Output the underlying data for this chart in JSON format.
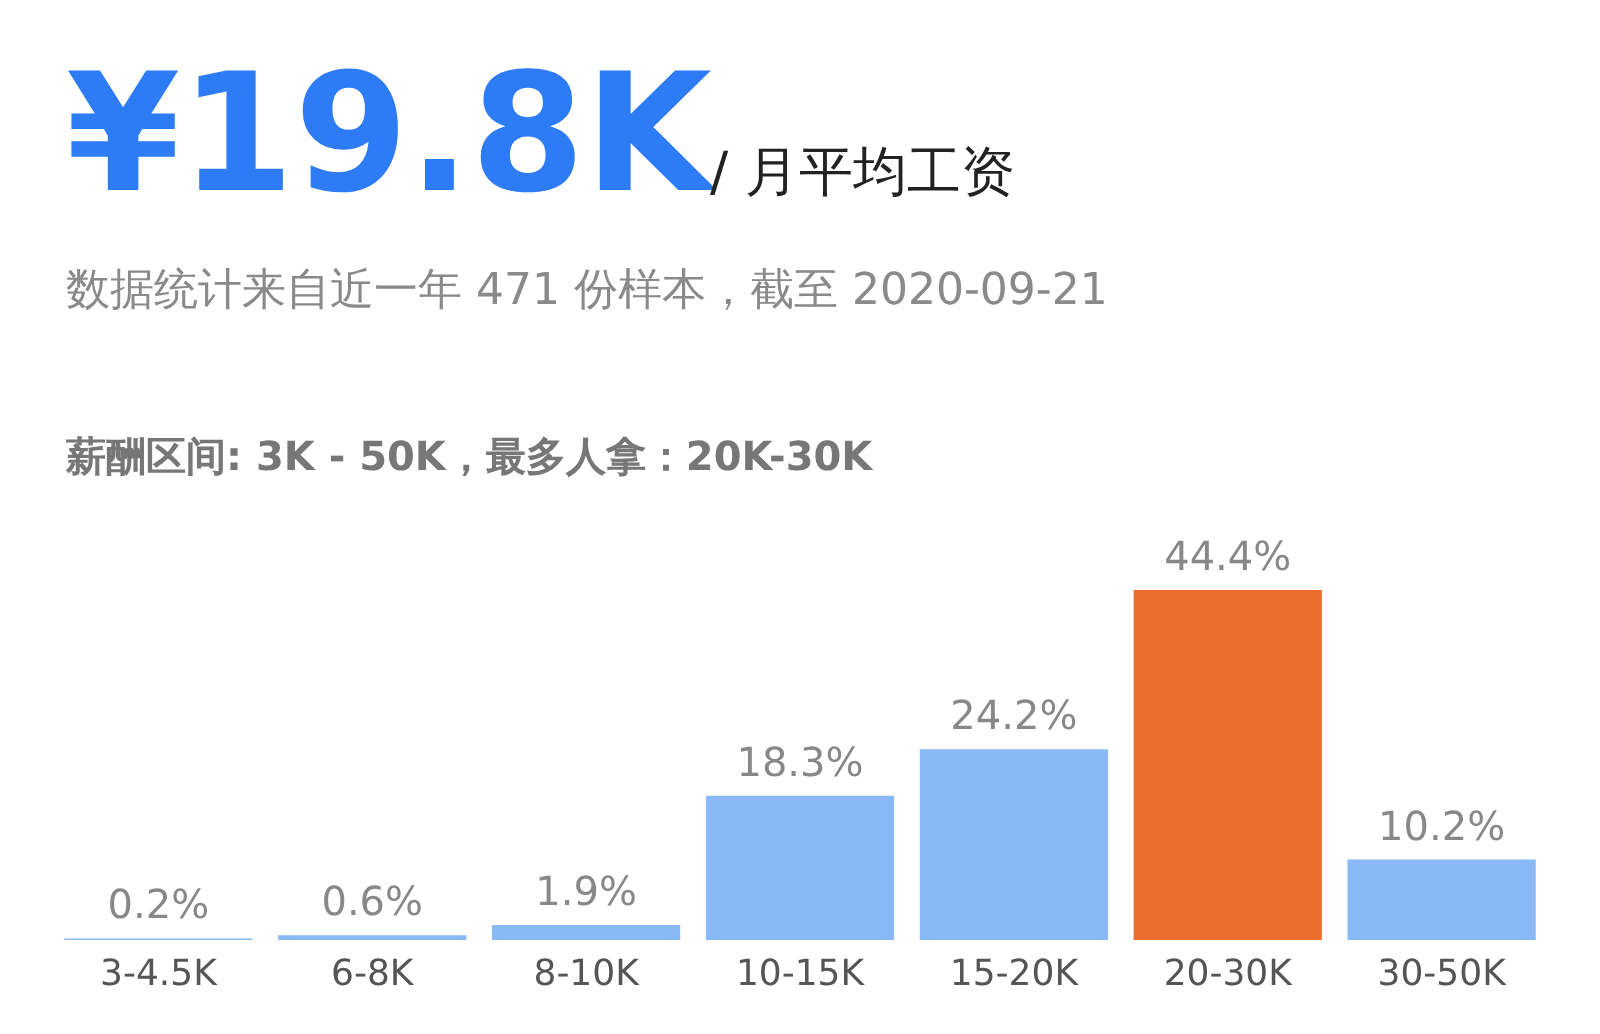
{
  "chart_data": {
    "type": "bar",
    "title": "¥19.8K",
    "subtitle": "/ 月平均工资",
    "annotations": [
      "数据统计来自近一年 471 份样本，截至 2020-09-21",
      "薪酬区间: 3K - 50K，最多人拿：20K-30K"
    ],
    "categories": [
      "3-4.5K",
      "6-8K",
      "8-10K",
      "10-15K",
      "15-20K",
      "20-30K",
      "30-50K"
    ],
    "values": [
      0.2,
      0.6,
      1.9,
      18.3,
      24.2,
      44.4,
      10.2
    ],
    "value_labels": [
      "0.2%",
      "0.6%",
      "1.9%",
      "18.3%",
      "24.2%",
      "44.4%",
      "10.2%"
    ],
    "colors": [
      "#8ab9f7",
      "#8ab9f7",
      "#8ab9f7",
      "#8ab9f7",
      "#8ab9f7",
      "#ec6d2d",
      "#8ab9f7"
    ],
    "grid": false,
    "legend": false
  }
}
